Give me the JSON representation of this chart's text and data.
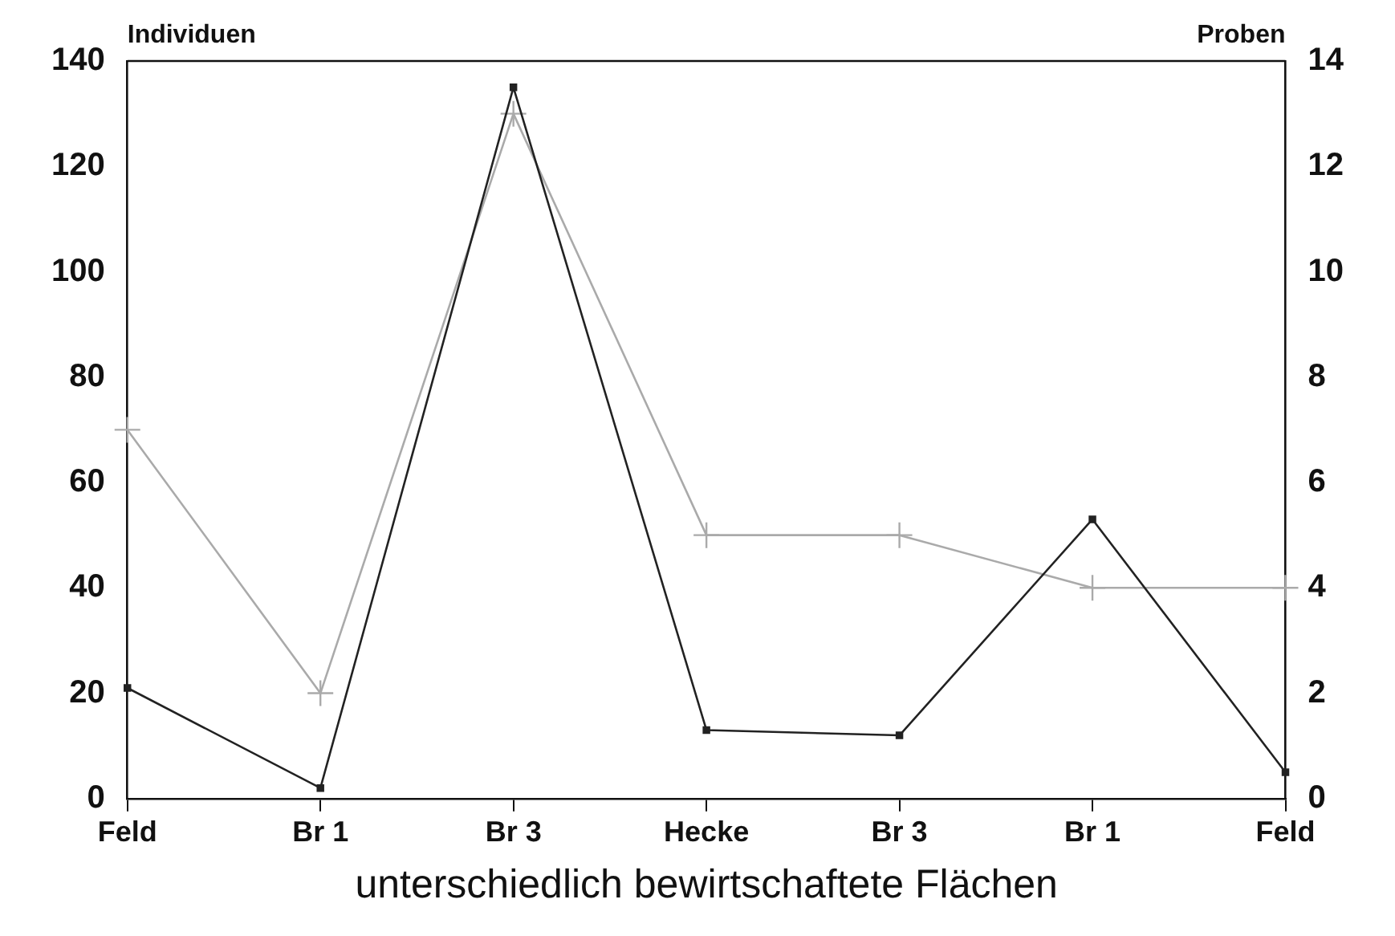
{
  "chart_data": {
    "type": "line",
    "xlabel": "unterschiedlich bewirtschaftete Flächen",
    "ylabel": "Individuen",
    "y2label": "Proben",
    "categories": [
      "Feld",
      "Br 1",
      "Br 3",
      "Hecke",
      "Br 3",
      "Br 1",
      "Feld"
    ],
    "series": [
      {
        "color": "#222222",
        "marker": "square",
        "values": [
          21,
          2,
          135,
          13,
          12,
          53,
          5
        ]
      },
      {
        "color": "#aaaaaa",
        "marker": "cross",
        "axis": "y2",
        "values": [
          7,
          2,
          13,
          5,
          5,
          4,
          4
        ]
      }
    ],
    "ylim": [
      0,
      140
    ],
    "yticks": [
      0,
      20,
      40,
      60,
      80,
      100,
      120,
      140
    ],
    "y2lim": [
      0,
      14
    ],
    "y2ticks": [
      0,
      2,
      4,
      6,
      8,
      10,
      12,
      14
    ],
    "grid": false,
    "legend": false,
    "line_style": "solid"
  }
}
